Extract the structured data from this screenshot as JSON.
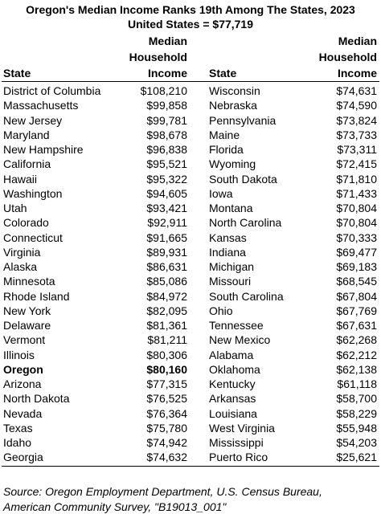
{
  "title": "Oregon's Median Income Ranks 19th Among The States, 2023",
  "subtitle": "United States = $77,719",
  "columns": [
    {
      "state": "State",
      "income": [
        "Median",
        "Household",
        "Income"
      ]
    },
    {
      "state": "State",
      "income": [
        "Median",
        "Household",
        "Income"
      ]
    }
  ],
  "rows": [
    [
      "District of Columbia",
      "$108,210",
      "Wisconsin",
      "$74,631"
    ],
    [
      "Massachusetts",
      "$99,858",
      "Nebraska",
      "$74,590"
    ],
    [
      "New Jersey",
      "$99,781",
      "Pennsylvania",
      "$73,824"
    ],
    [
      "Maryland",
      "$98,678",
      "Maine",
      "$73,733"
    ],
    [
      "New Hampshire",
      "$96,838",
      "Florida",
      "$73,311"
    ],
    [
      "California",
      "$95,521",
      "Wyoming",
      "$72,415"
    ],
    [
      "Hawaii",
      "$95,322",
      "South Dakota",
      "$71,810"
    ],
    [
      "Washington",
      "$94,605",
      "Iowa",
      "$71,433"
    ],
    [
      "Utah",
      "$93,421",
      "Montana",
      "$70,804"
    ],
    [
      "Colorado",
      "$92,911",
      "North Carolina",
      "$70,804"
    ],
    [
      "Connecticut",
      "$91,665",
      "Kansas",
      "$70,333"
    ],
    [
      "Virginia",
      "$89,931",
      "Indiana",
      "$69,477"
    ],
    [
      "Alaska",
      "$86,631",
      "Michigan",
      "$69,183"
    ],
    [
      "Minnesota",
      "$85,086",
      "Missouri",
      "$68,545"
    ],
    [
      "Rhode Island",
      "$84,972",
      "South Carolina",
      "$67,804"
    ],
    [
      "New York",
      "$82,095",
      "Ohio",
      "$67,769"
    ],
    [
      "Delaware",
      "$81,361",
      "Tennessee",
      "$67,631"
    ],
    [
      "Vermont",
      "$81,211",
      "New Mexico",
      "$62,268"
    ],
    [
      "Illinois",
      "$80,306",
      "Alabama",
      "$62,212"
    ],
    [
      "Oregon",
      "$80,160",
      "Oklahoma",
      "$62,138"
    ],
    [
      "Arizona",
      "$77,315",
      "Kentucky",
      "$61,118"
    ],
    [
      "North Dakota",
      "$76,525",
      "Arkansas",
      "$58,700"
    ],
    [
      "Nevada",
      "$76,364",
      "Louisiana",
      "$58,229"
    ],
    [
      "Texas",
      "$75,780",
      "West Virginia",
      "$55,948"
    ],
    [
      "Idaho",
      "$74,942",
      "Mississippi",
      "$54,203"
    ],
    [
      "Georgia",
      "$74,632",
      "Puerto Rico",
      "$25,621"
    ]
  ],
  "source": [
    "Source: Oregon Employment Department, U.S. Census Bureau,",
    "American Community Survey, \"B19013_001\""
  ]
}
